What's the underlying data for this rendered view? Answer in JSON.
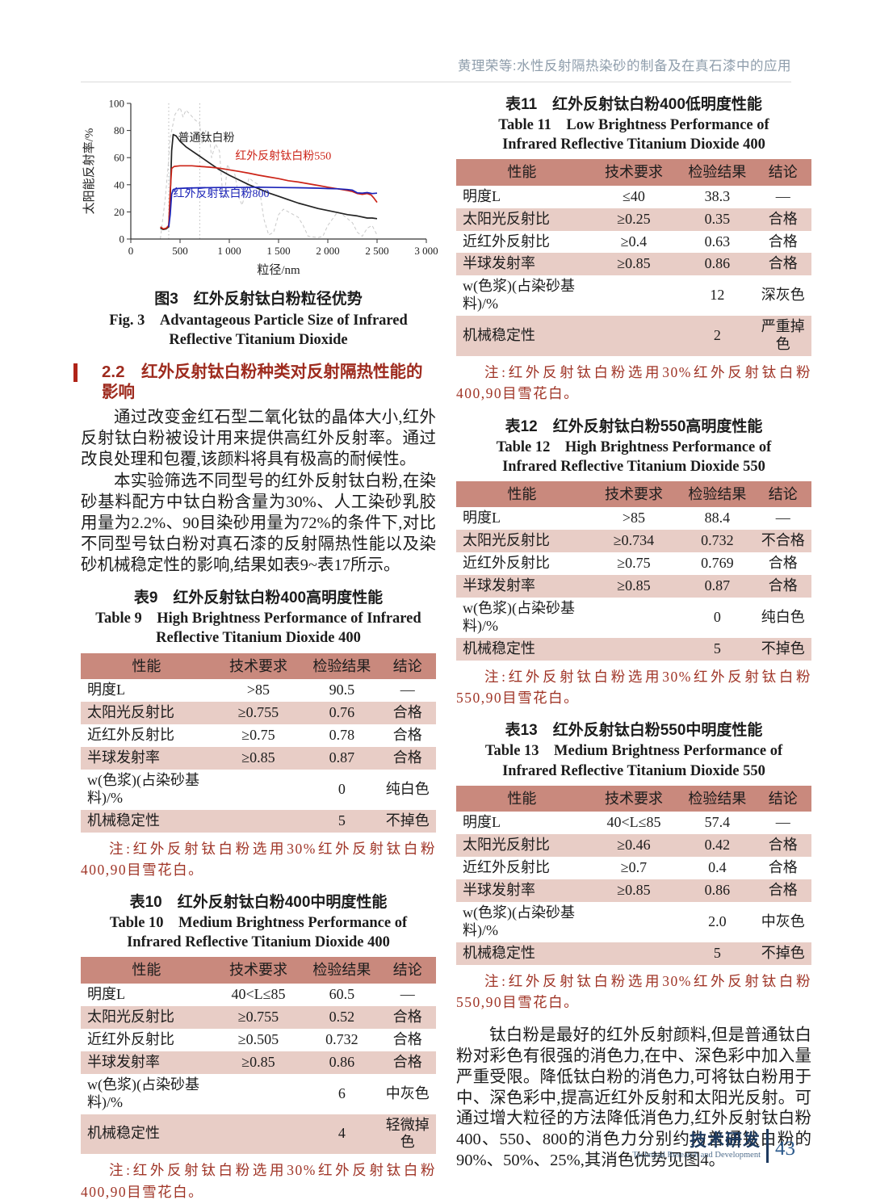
{
  "running_head": "黄理荣等:水性反射隔热染砂的制备及在真石漆中的应用",
  "section": {
    "heading": "2.2　红外反射钛白粉种类对反射隔热性能的影响"
  },
  "figure3": {
    "caption_cn": "图3　红外反射钛白粉粒径优势",
    "caption_en": "Fig. 3　Advantageous Particle Size of Infrared Reflective Titanium Dioxide"
  },
  "paragraphs": {
    "left_p1": "通过改变金红石型二氧化钛的晶体大小,红外反射钛白粉被设计用来提供高红外反射率。通过改良处理和包覆,该颜料将具有极高的耐候性。",
    "left_p2": "本实验筛选不同型号的红外反射钛白粉,在染砂基料配方中钛白粉含量为30%、人工染砂乳胶用量为2.2%、90目染砂用量为72%的条件下,对比不同型号钛白粉对真石漆的反射隔热性能以及染砂机械稳定性的影响,结果如表9~表17所示。",
    "right_p1": "钛白粉是最好的红外反射颜料,但是普通钛白粉对彩色有很强的消色力,在中、深色彩中加入量严重受限。降低钛白粉的消色力,可将钛白粉用于中、深色彩中,提高近红外反射和太阳光反射。可通过增大粒径的方法降低消色力,红外反射钛白粉400、550、800的消色力分别约为普通钛白粉的90%、50%、25%,其消色优势见图4。"
  },
  "tables": [
    {
      "title_cn": "表9　红外反射钛白粉400高明度性能",
      "title_en": "Table 9　High Brightness Performance of Infrared Reflective Titanium Dioxide 400",
      "headers": [
        "性能",
        "技术要求",
        "检验结果",
        "结论"
      ],
      "rows": [
        [
          "明度L",
          ">85",
          "90.5",
          "—"
        ],
        [
          "太阳光反射比",
          "≥0.755",
          "0.76",
          "合格"
        ],
        [
          "近红外反射比",
          "≥0.75",
          "0.78",
          "合格"
        ],
        [
          "半球发射率",
          "≥0.85",
          "0.87",
          "合格"
        ],
        [
          "w(色浆)(占染砂基料)/%",
          "",
          "0",
          "纯白色"
        ],
        [
          "机械稳定性",
          "",
          "5",
          "不掉色"
        ]
      ],
      "note": "注:红外反射钛白粉选用30%红外反射钛白粉400,90目雪花白。"
    },
    {
      "title_cn": "表10　红外反射钛白粉400中明度性能",
      "title_en": "Table 10　Medium Brightness Performance of Infrared Reflective Titanium Dioxide 400",
      "headers": [
        "性能",
        "技术要求",
        "检验结果",
        "结论"
      ],
      "rows": [
        [
          "明度L",
          "40<L≤85",
          "60.5",
          "—"
        ],
        [
          "太阳光反射比",
          "≥0.755",
          "0.52",
          "合格"
        ],
        [
          "近红外反射比",
          "≥0.505",
          "0.732",
          "合格"
        ],
        [
          "半球发射率",
          "≥0.85",
          "0.86",
          "合格"
        ],
        [
          "w(色浆)(占染砂基料)/%",
          "",
          "6",
          "中灰色"
        ],
        [
          "机械稳定性",
          "",
          "4",
          "轻微掉色"
        ]
      ],
      "note": "注:红外反射钛白粉选用30%红外反射钛白粉400,90目雪花白。"
    },
    {
      "title_cn": "表11　红外反射钛白粉400低明度性能",
      "title_en": "Table 11　Low Brightness Performance of Infrared Reflective Titanium Dioxide 400",
      "headers": [
        "性能",
        "技术要求",
        "检验结果",
        "结论"
      ],
      "rows": [
        [
          "明度L",
          "≤40",
          "38.3",
          "—"
        ],
        [
          "太阳光反射比",
          "≥0.25",
          "0.35",
          "合格"
        ],
        [
          "近红外反射比",
          "≥0.4",
          "0.63",
          "合格"
        ],
        [
          "半球发射率",
          "≥0.85",
          "0.86",
          "合格"
        ],
        [
          "w(色浆)(占染砂基料)/%",
          "",
          "12",
          "深灰色"
        ],
        [
          "机械稳定性",
          "",
          "2",
          "严重掉色"
        ]
      ],
      "note": "注:红外反射钛白粉选用30%红外反射钛白粉400,90目雪花白。"
    },
    {
      "title_cn": "表12　红外反射钛白粉550高明度性能",
      "title_en": "Table 12　High Brightness Performance of Infrared Reflective Titanium Dioxide 550",
      "headers": [
        "性能",
        "技术要求",
        "检验结果",
        "结论"
      ],
      "rows": [
        [
          "明度L",
          ">85",
          "88.4",
          "—"
        ],
        [
          "太阳光反射比",
          "≥0.734",
          "0.732",
          "不合格"
        ],
        [
          "近红外反射比",
          "≥0.75",
          "0.769",
          "合格"
        ],
        [
          "半球发射率",
          "≥0.85",
          "0.87",
          "合格"
        ],
        [
          "w(色浆)(占染砂基料)/%",
          "",
          "0",
          "纯白色"
        ],
        [
          "机械稳定性",
          "",
          "5",
          "不掉色"
        ]
      ],
      "note": "注:红外反射钛白粉选用30%红外反射钛白粉550,90目雪花白。"
    },
    {
      "title_cn": "表13　红外反射钛白粉550中明度性能",
      "title_en": "Table 13　Medium Brightness Performance of Infrared Reflective Titanium Dioxide 550",
      "headers": [
        "性能",
        "技术要求",
        "检验结果",
        "结论"
      ],
      "rows": [
        [
          "明度L",
          "40<L≤85",
          "57.4",
          "—"
        ],
        [
          "太阳光反射比",
          "≥0.46",
          "0.42",
          "合格"
        ],
        [
          "近红外反射比",
          "≥0.7",
          "0.4",
          "合格"
        ],
        [
          "半球发射率",
          "≥0.85",
          "0.86",
          "合格"
        ],
        [
          "w(色浆)(占染砂基料)/%",
          "",
          "2.0",
          "中灰色"
        ],
        [
          "机械稳定性",
          "",
          "5",
          "不掉色"
        ]
      ],
      "note": "注:红外反射钛白粉选用30%红外反射钛白粉550,90目雪花白。"
    }
  ],
  "footer": {
    "section_cn": "技术研发",
    "section_en": "Technical Research and Development",
    "page_number": "43"
  },
  "chart_data": {
    "type": "line",
    "title": "图3 红外反射钛白粉粒径优势",
    "xlabel": "粒径/nm",
    "ylabel": "太阳能反射率/%",
    "xlim": [
      0,
      3000
    ],
    "ylim": [
      0,
      100
    ],
    "x_ticks": [
      0,
      500,
      1000,
      1500,
      2000,
      2500,
      3000
    ],
    "x_tick_labels": [
      "0",
      "500",
      "1 000",
      "1 500",
      "2 000",
      "2 500",
      "3 000"
    ],
    "y_ticks": [
      0,
      20,
      40,
      60,
      80,
      100
    ],
    "grid": false,
    "legend_position": "inline-labels",
    "reference_vlines_x": [
      385,
      700
    ],
    "series": [
      {
        "name": "",
        "desc": "灰色虚线背景曲线",
        "color": "#c9c9c9",
        "style": "dashed",
        "width": 1,
        "points": [
          [
            300,
            0
          ],
          [
            350,
            30
          ],
          [
            380,
            55
          ],
          [
            400,
            75
          ],
          [
            450,
            92
          ],
          [
            500,
            97
          ],
          [
            530,
            90
          ],
          [
            560,
            95
          ],
          [
            600,
            92
          ],
          [
            650,
            88
          ],
          [
            700,
            85
          ],
          [
            720,
            70
          ],
          [
            760,
            80
          ],
          [
            800,
            75
          ],
          [
            820,
            60
          ],
          [
            860,
            70
          ],
          [
            900,
            65
          ],
          [
            930,
            35
          ],
          [
            950,
            30
          ],
          [
            980,
            55
          ],
          [
            1000,
            52
          ],
          [
            1050,
            50
          ],
          [
            1100,
            30
          ],
          [
            1130,
            25
          ],
          [
            1200,
            45
          ],
          [
            1250,
            42
          ],
          [
            1300,
            40
          ],
          [
            1350,
            15
          ],
          [
            1400,
            3
          ],
          [
            1450,
            5
          ],
          [
            1500,
            18
          ],
          [
            1550,
            22
          ],
          [
            1600,
            20
          ],
          [
            1700,
            16
          ],
          [
            1750,
            10
          ],
          [
            1800,
            2
          ],
          [
            1900,
            1
          ],
          [
            1950,
            2
          ],
          [
            2000,
            10
          ],
          [
            2100,
            20
          ],
          [
            2150,
            18
          ],
          [
            2250,
            12
          ],
          [
            2300,
            5
          ],
          [
            2350,
            2
          ],
          [
            2400,
            8
          ],
          [
            2450,
            10
          ],
          [
            2500,
            3
          ]
        ]
      },
      {
        "name": "普通钛白粉",
        "color": "#232323",
        "style": "solid",
        "width": 1.7,
        "label_at": [
          480,
          72
        ],
        "points": [
          [
            300,
            8
          ],
          [
            330,
            7
          ],
          [
            360,
            7.5
          ],
          [
            385,
            9
          ],
          [
            400,
            30
          ],
          [
            415,
            65
          ],
          [
            430,
            77
          ],
          [
            460,
            76
          ],
          [
            500,
            72
          ],
          [
            560,
            68
          ],
          [
            620,
            65
          ],
          [
            700,
            61
          ],
          [
            800,
            56
          ],
          [
            900,
            51
          ],
          [
            1000,
            47
          ],
          [
            1100,
            43.5
          ],
          [
            1200,
            40
          ],
          [
            1300,
            37
          ],
          [
            1400,
            34
          ],
          [
            1500,
            31.5
          ],
          [
            1600,
            29
          ],
          [
            1700,
            26.5
          ],
          [
            1800,
            24.5
          ],
          [
            1900,
            22.5
          ],
          [
            2000,
            21
          ],
          [
            2100,
            19.5
          ],
          [
            2200,
            18
          ],
          [
            2300,
            17
          ],
          [
            2400,
            15.5
          ],
          [
            2450,
            15.5
          ],
          [
            2500,
            15
          ]
        ]
      },
      {
        "name": "红外反射钛白粉550",
        "color": "#cc2418",
        "style": "solid",
        "width": 1.7,
        "label_at": [
          1060,
          58.5
        ],
        "points": [
          [
            300,
            9
          ],
          [
            330,
            7.5
          ],
          [
            360,
            8
          ],
          [
            385,
            10
          ],
          [
            400,
            35
          ],
          [
            415,
            52
          ],
          [
            440,
            53.5
          ],
          [
            500,
            54
          ],
          [
            560,
            54
          ],
          [
            620,
            54
          ],
          [
            700,
            53.5
          ],
          [
            800,
            53
          ],
          [
            900,
            52.2
          ],
          [
            1000,
            51
          ],
          [
            1100,
            49.8
          ],
          [
            1200,
            48.5
          ],
          [
            1300,
            47
          ],
          [
            1400,
            45.8
          ],
          [
            1500,
            44.5
          ],
          [
            1600,
            43
          ],
          [
            1700,
            42
          ],
          [
            1800,
            40.8
          ],
          [
            1900,
            39.5
          ],
          [
            2000,
            38.2
          ],
          [
            2100,
            37
          ],
          [
            2200,
            35.8
          ],
          [
            2250,
            35
          ],
          [
            2300,
            33.5
          ],
          [
            2350,
            33
          ],
          [
            2400,
            33.5
          ],
          [
            2440,
            32.5
          ],
          [
            2470,
            30
          ],
          [
            2500,
            27
          ]
        ]
      },
      {
        "name": "红外反射钛白粉800",
        "color": "#1c24b8",
        "style": "solid",
        "width": 1.7,
        "label_at": [
          430,
          31
        ],
        "points": [
          [
            385,
            9
          ],
          [
            400,
            18
          ],
          [
            415,
            33
          ],
          [
            430,
            36.5
          ],
          [
            470,
            37.2
          ],
          [
            550,
            37.5
          ],
          [
            700,
            37.8
          ],
          [
            900,
            38
          ],
          [
            1100,
            38
          ],
          [
            1300,
            38.2
          ],
          [
            1500,
            38
          ],
          [
            1700,
            37.8
          ],
          [
            1900,
            37.5
          ],
          [
            2000,
            37.2
          ],
          [
            2100,
            37
          ],
          [
            2200,
            36.5
          ],
          [
            2250,
            36
          ],
          [
            2300,
            34
          ],
          [
            2350,
            33.8
          ],
          [
            2400,
            34.2
          ],
          [
            2450,
            33.5
          ],
          [
            2500,
            33.8
          ]
        ]
      }
    ]
  }
}
